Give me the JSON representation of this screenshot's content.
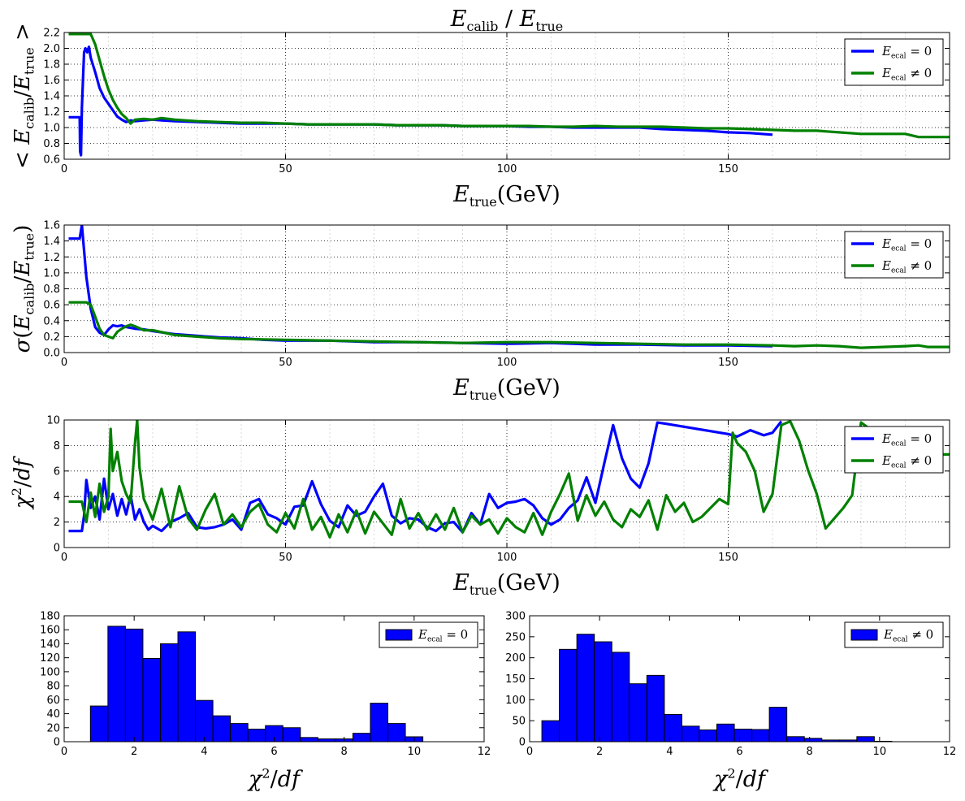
{
  "figure_title": "E_calib / E_true",
  "colors": {
    "e0": "#0000ff",
    "ene0": "#008000",
    "bar": "#0000ff"
  },
  "legend_labels": {
    "e0": "E_ecal = 0",
    "ene0": "E_ecal ≠ 0"
  },
  "chart_data": [
    {
      "id": "mean",
      "type": "line",
      "title": "E_calib / E_true",
      "xlabel": "E_true(GeV)",
      "ylabel": "< E_calib / E_true >",
      "xlim": [
        0,
        200
      ],
      "ylim": [
        0.6,
        2.2
      ],
      "xticks": [
        0,
        50,
        100,
        150
      ],
      "yticks": [
        0.6,
        0.8,
        1.0,
        1.2,
        1.4,
        1.6,
        1.8,
        2.0,
        2.2
      ],
      "ytick_labels": [
        "0.6",
        "0.8",
        "1.0",
        "1.2",
        "1.4",
        "1.6",
        "1.8",
        "2.0",
        "2.2"
      ],
      "grid": true,
      "legend": "upper right",
      "series": [
        {
          "name": "E_ecal = 0",
          "color": "#0000ff",
          "x": [
            1,
            3,
            3.5,
            3.6,
            3.8,
            4,
            4.5,
            4.8,
            5.2,
            5.6,
            6,
            7,
            8,
            9,
            10,
            11,
            12,
            13,
            14,
            15,
            16,
            18,
            20,
            22,
            25,
            30,
            35,
            40,
            45,
            50,
            55,
            60,
            65,
            70,
            75,
            80,
            85,
            90,
            95,
            100,
            105,
            110,
            115,
            120,
            125,
            130,
            135,
            140,
            145,
            150,
            155,
            160
          ],
          "y": [
            1.13,
            1.13,
            1.13,
            0.7,
            0.65,
            1.25,
            1.95,
            2.0,
            1.95,
            2.02,
            1.88,
            1.7,
            1.5,
            1.38,
            1.3,
            1.22,
            1.14,
            1.1,
            1.07,
            1.09,
            1.08,
            1.09,
            1.1,
            1.09,
            1.08,
            1.07,
            1.06,
            1.05,
            1.05,
            1.05,
            1.04,
            1.04,
            1.04,
            1.04,
            1.03,
            1.03,
            1.03,
            1.02,
            1.02,
            1.02,
            1.01,
            1.01,
            1.0,
            1.0,
            1.0,
            1.0,
            0.98,
            0.97,
            0.96,
            0.94,
            0.93,
            0.91
          ]
        },
        {
          "name": "E_ecal ≠ 0",
          "color": "#008000",
          "x": [
            1,
            4,
            5,
            6,
            7,
            8,
            9,
            10,
            11,
            12,
            13,
            14,
            15,
            16,
            18,
            20,
            22,
            25,
            30,
            35,
            40,
            45,
            50,
            55,
            60,
            65,
            70,
            75,
            80,
            85,
            90,
            95,
            100,
            105,
            110,
            115,
            120,
            125,
            130,
            135,
            140,
            145,
            150,
            155,
            160,
            165,
            170,
            175,
            180,
            185,
            190,
            193,
            195,
            200
          ],
          "y": [
            2.18,
            2.18,
            2.18,
            2.18,
            2.05,
            1.85,
            1.65,
            1.48,
            1.35,
            1.25,
            1.17,
            1.12,
            1.05,
            1.1,
            1.11,
            1.1,
            1.12,
            1.1,
            1.08,
            1.07,
            1.06,
            1.06,
            1.05,
            1.04,
            1.04,
            1.04,
            1.04,
            1.03,
            1.03,
            1.03,
            1.02,
            1.02,
            1.02,
            1.02,
            1.01,
            1.01,
            1.02,
            1.01,
            1.01,
            1.01,
            1.0,
            0.99,
            0.99,
            0.98,
            0.97,
            0.96,
            0.96,
            0.94,
            0.92,
            0.92,
            0.92,
            0.88,
            0.88,
            0.88
          ]
        }
      ]
    },
    {
      "id": "sigma",
      "type": "line",
      "xlabel": "E_true(GeV)",
      "ylabel": "σ(E_calib / E_true)",
      "xlim": [
        0,
        200
      ],
      "ylim": [
        0.0,
        1.6
      ],
      "xticks": [
        0,
        50,
        100,
        150
      ],
      "yticks": [
        0.0,
        0.2,
        0.4,
        0.6,
        0.8,
        1.0,
        1.2,
        1.4,
        1.6
      ],
      "ytick_labels": [
        "0.0",
        "0.2",
        "0.4",
        "0.6",
        "0.8",
        "1.0",
        "1.2",
        "1.4",
        "1.6"
      ],
      "grid": true,
      "legend": "upper right",
      "series": [
        {
          "name": "E_ecal = 0",
          "color": "#0000ff",
          "x": [
            1,
            3,
            3.5,
            4,
            5,
            6,
            7,
            8,
            9,
            10,
            11,
            12,
            13,
            14,
            16,
            18,
            20,
            25,
            30,
            35,
            40,
            45,
            50,
            60,
            70,
            80,
            90,
            100,
            110,
            120,
            130,
            140,
            150,
            160
          ],
          "y": [
            1.43,
            1.43,
            1.43,
            1.6,
            0.95,
            0.55,
            0.32,
            0.25,
            0.22,
            0.29,
            0.34,
            0.33,
            0.34,
            0.32,
            0.3,
            0.29,
            0.27,
            0.23,
            0.21,
            0.19,
            0.18,
            0.16,
            0.15,
            0.15,
            0.13,
            0.13,
            0.12,
            0.11,
            0.12,
            0.1,
            0.1,
            0.09,
            0.09,
            0.08
          ]
        },
        {
          "name": "E_ecal ≠ 0",
          "color": "#008000",
          "x": [
            1,
            4,
            5,
            6,
            7,
            8,
            9,
            10,
            11,
            12,
            13,
            14,
            15,
            16,
            18,
            20,
            25,
            30,
            35,
            40,
            50,
            60,
            70,
            80,
            90,
            100,
            110,
            120,
            130,
            140,
            150,
            160,
            165,
            170,
            175,
            180,
            185,
            190,
            193,
            195,
            200
          ],
          "y": [
            0.63,
            0.63,
            0.63,
            0.6,
            0.45,
            0.3,
            0.22,
            0.2,
            0.18,
            0.26,
            0.3,
            0.33,
            0.35,
            0.33,
            0.28,
            0.28,
            0.22,
            0.2,
            0.18,
            0.17,
            0.16,
            0.15,
            0.14,
            0.13,
            0.12,
            0.13,
            0.13,
            0.12,
            0.11,
            0.1,
            0.1,
            0.09,
            0.08,
            0.09,
            0.08,
            0.06,
            0.07,
            0.08,
            0.09,
            0.07,
            0.07
          ]
        }
      ]
    },
    {
      "id": "chi2",
      "type": "line",
      "xlabel": "E_true(GeV)",
      "ylabel": "χ²/df",
      "xlim": [
        0,
        200
      ],
      "ylim": [
        0,
        10
      ],
      "xticks": [
        0,
        50,
        100,
        150
      ],
      "yticks": [
        0,
        2,
        4,
        6,
        8,
        10
      ],
      "ytick_labels": [
        "0",
        "2",
        "4",
        "6",
        "8",
        "10"
      ],
      "grid": true,
      "legend": "upper right",
      "series": [
        {
          "name": "E_ecal = 0",
          "color": "#0000ff",
          "x": [
            1,
            4,
            4.5,
            5,
            6,
            7,
            8,
            9,
            10,
            11,
            12,
            13,
            14,
            15,
            16,
            17,
            18,
            19,
            20,
            22,
            24,
            26,
            28,
            30,
            32,
            34,
            36,
            38,
            40,
            42,
            44,
            46,
            48,
            50,
            52,
            54,
            56,
            58,
            60,
            62,
            64,
            66,
            68,
            70,
            72,
            74,
            76,
            78,
            80,
            82,
            84,
            86,
            88,
            90,
            92,
            94,
            96,
            98,
            100,
            102,
            104,
            106,
            108,
            110,
            112,
            114,
            116,
            118,
            120,
            122,
            124,
            126,
            128,
            130,
            132,
            134,
            136,
            150,
            152,
            155,
            158,
            160,
            162
          ],
          "y": [
            1.3,
            1.3,
            2.5,
            5.3,
            3.1,
            4.0,
            2.2,
            5.4,
            3.0,
            4.2,
            2.5,
            3.8,
            2.6,
            4.1,
            2.2,
            3.0,
            2.0,
            1.4,
            1.7,
            1.3,
            2.0,
            2.3,
            2.7,
            1.6,
            1.5,
            1.6,
            1.8,
            2.2,
            1.4,
            3.5,
            3.8,
            2.6,
            2.3,
            1.8,
            3.2,
            3.3,
            5.2,
            3.4,
            2.1,
            1.6,
            3.3,
            2.5,
            2.8,
            4.0,
            5.0,
            2.5,
            1.9,
            2.3,
            2.2,
            1.6,
            1.3,
            1.9,
            2.0,
            1.2,
            2.7,
            1.8,
            4.2,
            3.1,
            3.5,
            3.6,
            3.8,
            3.3,
            2.3,
            1.8,
            2.2,
            3.1,
            3.7,
            5.5,
            3.5,
            6.6,
            9.6,
            7.0,
            5.4,
            4.7,
            6.6,
            9.8,
            9.7,
            8.9,
            8.7,
            9.2,
            8.8,
            9.0,
            9.9
          ]
        },
        {
          "name": "E_ecal ≠ 0",
          "color": "#008000",
          "x": [
            1,
            4,
            5,
            6,
            7,
            8,
            9,
            10,
            10.5,
            11,
            12,
            13,
            14,
            15,
            16,
            16.5,
            17,
            18,
            20,
            22,
            24,
            26,
            28,
            30,
            32,
            34,
            36,
            38,
            40,
            42,
            44,
            46,
            48,
            50,
            52,
            54,
            56,
            58,
            60,
            62,
            64,
            66,
            68,
            70,
            72,
            74,
            76,
            78,
            80,
            82,
            84,
            86,
            88,
            90,
            92,
            94,
            96,
            98,
            100,
            102,
            104,
            106,
            108,
            110,
            112,
            114,
            116,
            118,
            120,
            122,
            124,
            126,
            128,
            130,
            132,
            134,
            136,
            138,
            140,
            142,
            144,
            146,
            148,
            150,
            151,
            152,
            154,
            156,
            158,
            160,
            162,
            164,
            166,
            168,
            170,
            172,
            174,
            176,
            178,
            180,
            182,
            184,
            186,
            188,
            190,
            192,
            194,
            196,
            198,
            200
          ],
          "y": [
            3.6,
            3.6,
            2.0,
            4.3,
            2.4,
            5.0,
            2.8,
            4.0,
            9.3,
            6.0,
            7.5,
            5.2,
            4.2,
            3.5,
            8.2,
            10.0,
            6.3,
            3.8,
            2.2,
            4.6,
            1.6,
            4.8,
            2.3,
            1.4,
            3.0,
            4.2,
            1.8,
            2.6,
            1.6,
            2.8,
            3.4,
            1.8,
            1.2,
            2.7,
            1.5,
            3.8,
            1.4,
            2.4,
            0.8,
            2.6,
            1.2,
            2.9,
            1.1,
            2.8,
            1.9,
            1.0,
            3.8,
            1.5,
            2.7,
            1.4,
            2.6,
            1.4,
            3.1,
            1.2,
            2.5,
            1.8,
            2.2,
            1.1,
            2.3,
            1.6,
            1.2,
            2.7,
            1.0,
            2.8,
            4.2,
            5.8,
            2.1,
            4.1,
            2.5,
            3.6,
            2.2,
            1.6,
            3.0,
            2.4,
            3.7,
            1.4,
            4.1,
            2.8,
            3.5,
            2.0,
            2.4,
            3.1,
            3.8,
            3.4,
            9.0,
            8.2,
            7.5,
            6.0,
            2.8,
            4.2,
            9.6,
            9.9,
            8.4,
            6.1,
            4.2,
            1.5,
            2.3,
            3.1,
            4.1,
            9.8,
            9.3,
            9.0,
            8.4,
            7.8,
            7.3,
            7.3,
            7.3,
            7.3,
            7.3,
            7.3
          ]
        }
      ]
    },
    {
      "id": "hist_e0",
      "type": "bar",
      "xlabel": "χ²/df",
      "xlim": [
        0,
        12
      ],
      "ylim": [
        0,
        180
      ],
      "xticks": [
        0,
        2,
        4,
        6,
        8,
        10,
        12
      ],
      "yticks": [
        0,
        20,
        40,
        60,
        80,
        100,
        120,
        140,
        160,
        180
      ],
      "legend": "upper right",
      "series": [
        {
          "name": "E_ecal = 0",
          "color": "#0000ff",
          "bin_edges": [
            0.75,
            1.25,
            1.75,
            2.25,
            2.75,
            3.25,
            3.75,
            4.25,
            4.75,
            5.25,
            5.75,
            6.25,
            6.75,
            7.25,
            7.75,
            8.25,
            8.75,
            9.25,
            9.75,
            10.25
          ],
          "values": [
            51,
            165,
            161,
            119,
            140,
            157,
            59,
            37,
            26,
            18,
            23,
            20,
            6,
            4,
            4,
            12,
            55,
            26,
            7
          ]
        }
      ]
    },
    {
      "id": "hist_ene0",
      "type": "bar",
      "xlabel": "χ²/df",
      "xlim": [
        0,
        12
      ],
      "ylim": [
        0,
        300
      ],
      "xticks": [
        0,
        2,
        4,
        6,
        8,
        10,
        12
      ],
      "yticks": [
        0,
        50,
        100,
        150,
        200,
        250,
        300
      ],
      "legend": "upper right",
      "series": [
        {
          "name": "E_ecal ≠ 0",
          "color": "#0000ff",
          "bin_edges": [
            0.35,
            0.85,
            1.35,
            1.85,
            2.35,
            2.85,
            3.35,
            3.85,
            4.35,
            4.85,
            5.35,
            5.85,
            6.35,
            6.85,
            7.35,
            7.85,
            8.35,
            8.85,
            9.35,
            9.85,
            10.35
          ],
          "values": [
            50,
            220,
            256,
            238,
            213,
            138,
            158,
            65,
            37,
            28,
            42,
            30,
            29,
            82,
            12,
            8,
            4,
            4,
            12,
            1
          ]
        }
      ]
    }
  ]
}
